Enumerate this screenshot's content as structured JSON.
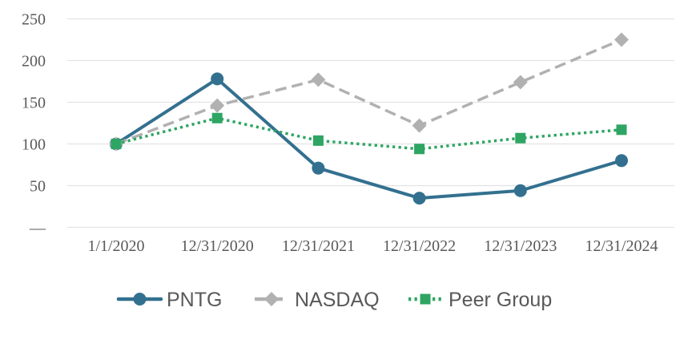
{
  "chart_data": {
    "type": "line",
    "title": "",
    "xlabel": "",
    "ylabel": "",
    "categories": [
      "1/1/2020",
      "12/31/2020",
      "12/31/2021",
      "12/31/2022",
      "12/31/2023",
      "12/31/2024"
    ],
    "series": [
      {
        "name": "PNTG",
        "values": [
          100,
          178,
          71,
          35,
          44,
          80
        ],
        "color": "#33708F",
        "marker": "circle",
        "line_style": "solid"
      },
      {
        "name": "NASDAQ",
        "values": [
          100,
          146,
          177,
          122,
          174,
          225
        ],
        "color": "#B1B1B1",
        "marker": "diamond",
        "line_style": "dashed"
      },
      {
        "name": "Peer Group",
        "values": [
          100,
          131,
          104,
          94,
          107,
          117
        ],
        "color": "#2EA563",
        "marker": "square",
        "line_style": "dotted"
      }
    ],
    "ylim": [
      0,
      250
    ],
    "y_ticks": [
      {
        "value": 250,
        "label": "250"
      },
      {
        "value": 200,
        "label": "200"
      },
      {
        "value": 150,
        "label": "150"
      },
      {
        "value": 100,
        "label": "100"
      },
      {
        "value": 50,
        "label": "50"
      },
      {
        "value": 0,
        "label": "—"
      }
    ],
    "grid": "horizontal-only",
    "legend_position": "bottom",
    "colors": {
      "axis_text": "#595959",
      "legend_text": "#595959",
      "gridline": "#E3E3E3",
      "background": "#FFFFFF"
    }
  }
}
